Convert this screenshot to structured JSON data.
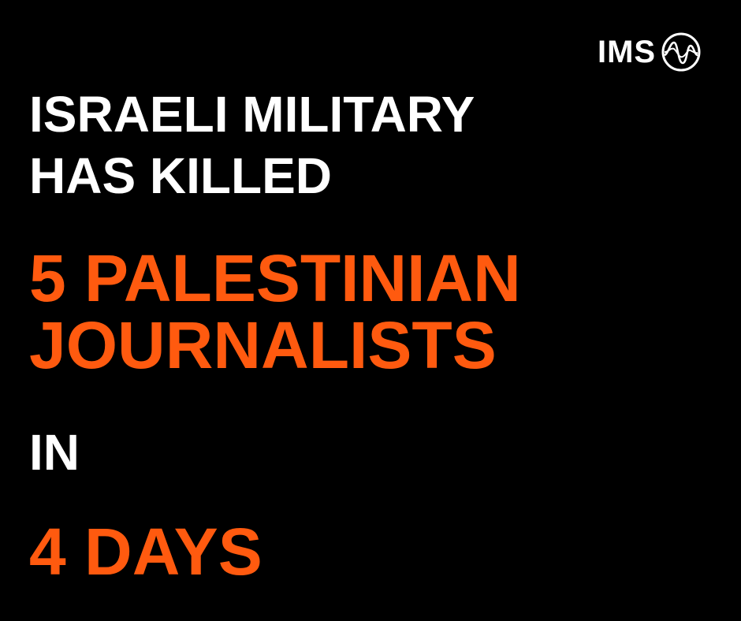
{
  "logo": {
    "text": "IMS",
    "icon": "sound-wave-circle-icon"
  },
  "headline": {
    "line1": "ISRAELI MILITARY",
    "line2": "HAS KILLED",
    "highlight1": "5 PALESTINIAN",
    "highlight2": "JOURNALISTS",
    "connector": "IN",
    "highlight3": "4 DAYS"
  },
  "colors": {
    "background": "#000000",
    "text": "#ffffff",
    "accent": "#ff5a0f"
  }
}
